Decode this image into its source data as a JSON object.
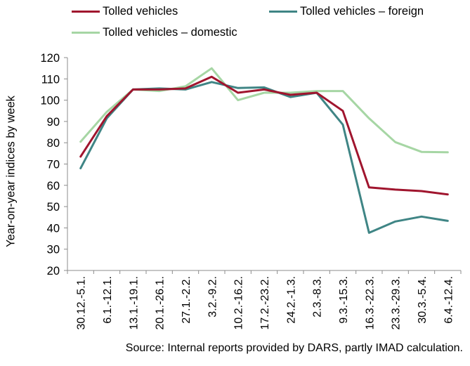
{
  "chart_data": {
    "type": "line",
    "categories": [
      "30.12.-5.1.",
      "6.1.-12.1.",
      "13.1.-19.1.",
      "20.1.-26.1.",
      "27.1.-2.2.",
      "3.2.-9.2.",
      "10.2.-16.2.",
      "17.2.-23.2.",
      "24.2.-1.3.",
      "2.3.-8.3.",
      "9.3.-15.3.",
      "16.3.-22.3.",
      "23.3.-29.3.",
      "30.3.-5.4.",
      "6.4.-12.4."
    ],
    "series": [
      {
        "name": "Tolled vehicles",
        "color": "#a0152e",
        "values": [
          73.5,
          92.5,
          105,
          105,
          105.5,
          111,
          103.5,
          105,
          102.5,
          103.5,
          95,
          59,
          58,
          57.3,
          55.7
        ]
      },
      {
        "name": "Tolled vehicles – foreign",
        "color": "#3f8585",
        "values": [
          68,
          91.5,
          105,
          105.5,
          105,
          108.5,
          105.7,
          106,
          101.5,
          103.5,
          88.5,
          37.7,
          43,
          45.3,
          43.3
        ]
      },
      {
        "name": "Tolled vehicles – domestic",
        "color": "#a6d6a4",
        "values": [
          80.5,
          94.5,
          105,
          104.3,
          106.5,
          115,
          100,
          103.5,
          103.5,
          104.3,
          104.3,
          91.5,
          80.3,
          75.7,
          75.5
        ]
      }
    ],
    "ylabel": "Year-on-year indices by week",
    "xlabel": "",
    "ylim": [
      20,
      120
    ],
    "yticks": [
      20,
      30,
      40,
      50,
      60,
      70,
      80,
      90,
      100,
      110,
      120
    ],
    "grid": false,
    "legend": "top",
    "source": "Source: Internal reports provided by DARS, partly IMAD calculation."
  }
}
